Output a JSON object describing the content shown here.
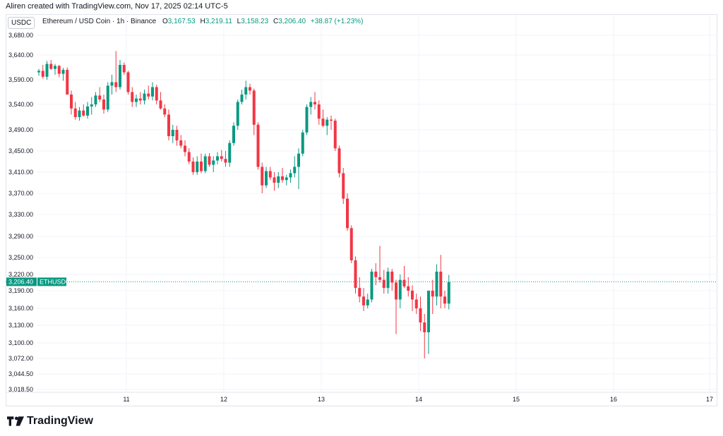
{
  "header": {
    "credit": "Aliren created with TradingView.com, Nov 17, 2025 02:14 UTC-5"
  },
  "legend": {
    "symbol": "Ethereum / USD Coin · 1h · Binance",
    "open_label": "O",
    "open": "3,167.53",
    "high_label": "H",
    "high": "3,219.11",
    "low_label": "L",
    "low": "3,158.23",
    "close_label": "C",
    "close": "3,206.40",
    "change": "+38.87 (+1.23%)"
  },
  "currency_badge": "USDC",
  "price_marker": {
    "value": "3,206.40",
    "ticker": "ETHUSDC"
  },
  "footer": {
    "brand": "TradingView"
  },
  "colors": {
    "up": "#089981",
    "down": "#f23645",
    "grid": "#f0f3fa",
    "axis_text": "#131722"
  },
  "chart_data": {
    "type": "candlestick",
    "title": "Ethereum / USD Coin · 1h · Binance",
    "y_axis": {
      "ticks": [
        "3,680.00",
        "3,640.00",
        "3,590.00",
        "3,540.00",
        "3,490.00",
        "3,450.00",
        "3,410.00",
        "3,370.00",
        "3,330.00",
        "3,290.00",
        "3,250.00",
        "3,220.00",
        "3,190.00",
        "3,160.00",
        "3,130.00",
        "3,100.00",
        "3,072.00",
        "3,044.50",
        "3,018.50"
      ],
      "range": [
        3000,
        3700
      ]
    },
    "x_axis": {
      "ticks": [
        "11",
        "12",
        "13",
        "14",
        "15",
        "16",
        "17"
      ],
      "unit": "day"
    },
    "last_price": 3206.4,
    "candles": [
      [
        3605,
        3612,
        3598,
        3608
      ],
      [
        3608,
        3620,
        3592,
        3596
      ],
      [
        3596,
        3628,
        3590,
        3622
      ],
      [
        3622,
        3630,
        3610,
        3612
      ],
      [
        3612,
        3622,
        3600,
        3618
      ],
      [
        3618,
        3620,
        3595,
        3602
      ],
      [
        3602,
        3614,
        3588,
        3610
      ],
      [
        3610,
        3615,
        3560,
        3560
      ],
      [
        3560,
        3568,
        3520,
        3532
      ],
      [
        3532,
        3545,
        3510,
        3515
      ],
      [
        3515,
        3535,
        3508,
        3528
      ],
      [
        3528,
        3540,
        3516,
        3518
      ],
      [
        3518,
        3545,
        3512,
        3536
      ],
      [
        3536,
        3555,
        3520,
        3540
      ],
      [
        3540,
        3565,
        3535,
        3558
      ],
      [
        3558,
        3575,
        3545,
        3550
      ],
      [
        3550,
        3560,
        3522,
        3530
      ],
      [
        3530,
        3585,
        3525,
        3578
      ],
      [
        3578,
        3600,
        3560,
        3585
      ],
      [
        3585,
        3648,
        3565,
        3575
      ],
      [
        3575,
        3630,
        3570,
        3620
      ],
      [
        3620,
        3625,
        3600,
        3605
      ],
      [
        3605,
        3608,
        3560,
        3565
      ],
      [
        3565,
        3575,
        3535,
        3545
      ],
      [
        3545,
        3560,
        3535,
        3552
      ],
      [
        3552,
        3565,
        3540,
        3548
      ],
      [
        3548,
        3570,
        3540,
        3562
      ],
      [
        3562,
        3578,
        3550,
        3556
      ],
      [
        3556,
        3585,
        3548,
        3575
      ],
      [
        3575,
        3580,
        3540,
        3548
      ],
      [
        3548,
        3565,
        3530,
        3532
      ],
      [
        3532,
        3540,
        3515,
        3520
      ],
      [
        3520,
        3530,
        3470,
        3478
      ],
      [
        3478,
        3500,
        3465,
        3490
      ],
      [
        3490,
        3498,
        3460,
        3470
      ],
      [
        3470,
        3480,
        3455,
        3460
      ],
      [
        3460,
        3470,
        3440,
        3448
      ],
      [
        3448,
        3455,
        3425,
        3430
      ],
      [
        3430,
        3438,
        3405,
        3410
      ],
      [
        3410,
        3440,
        3405,
        3430
      ],
      [
        3430,
        3445,
        3408,
        3412
      ],
      [
        3412,
        3445,
        3408,
        3440
      ],
      [
        3440,
        3446,
        3420,
        3424
      ],
      [
        3424,
        3440,
        3410,
        3432
      ],
      [
        3432,
        3448,
        3425,
        3440
      ],
      [
        3440,
        3452,
        3430,
        3435
      ],
      [
        3435,
        3450,
        3420,
        3428
      ],
      [
        3428,
        3470,
        3420,
        3465
      ],
      [
        3465,
        3505,
        3460,
        3498
      ],
      [
        3498,
        3550,
        3490,
        3545
      ],
      [
        3545,
        3570,
        3540,
        3560
      ],
      [
        3560,
        3588,
        3550,
        3575
      ],
      [
        3575,
        3582,
        3560,
        3568
      ],
      [
        3568,
        3572,
        3480,
        3500
      ],
      [
        3500,
        3505,
        3415,
        3420
      ],
      [
        3420,
        3428,
        3370,
        3385
      ],
      [
        3385,
        3420,
        3380,
        3412
      ],
      [
        3412,
        3420,
        3395,
        3400
      ],
      [
        3400,
        3410,
        3375,
        3390
      ],
      [
        3390,
        3410,
        3380,
        3402
      ],
      [
        3402,
        3418,
        3390,
        3395
      ],
      [
        3395,
        3405,
        3385,
        3400
      ],
      [
        3400,
        3415,
        3390,
        3408
      ],
      [
        3408,
        3440,
        3400,
        3420
      ],
      [
        3420,
        3455,
        3378,
        3445
      ],
      [
        3445,
        3490,
        3440,
        3485
      ],
      [
        3485,
        3540,
        3480,
        3535
      ],
      [
        3535,
        3555,
        3520,
        3545
      ],
      [
        3545,
        3565,
        3530,
        3540
      ],
      [
        3540,
        3548,
        3500,
        3512
      ],
      [
        3512,
        3530,
        3495,
        3498
      ],
      [
        3498,
        3515,
        3480,
        3510
      ],
      [
        3510,
        3518,
        3490,
        3508
      ],
      [
        3508,
        3512,
        3450,
        3455
      ],
      [
        3455,
        3460,
        3400,
        3408
      ],
      [
        3408,
        3418,
        3350,
        3360
      ],
      [
        3360,
        3370,
        3300,
        3305
      ],
      [
        3305,
        3310,
        3240,
        3245
      ],
      [
        3245,
        3252,
        3185,
        3195
      ],
      [
        3195,
        3215,
        3170,
        3180
      ],
      [
        3180,
        3195,
        3155,
        3165
      ],
      [
        3165,
        3185,
        3160,
        3175
      ],
      [
        3175,
        3230,
        3170,
        3225
      ],
      [
        3225,
        3240,
        3200,
        3215
      ],
      [
        3215,
        3272,
        3205,
        3210
      ],
      [
        3210,
        3228,
        3185,
        3195
      ],
      [
        3195,
        3232,
        3185,
        3225
      ],
      [
        3225,
        3230,
        3190,
        3205
      ],
      [
        3205,
        3210,
        3115,
        3175
      ],
      [
        3175,
        3220,
        3160,
        3210
      ],
      [
        3210,
        3235,
        3195,
        3198
      ],
      [
        3198,
        3215,
        3180,
        3190
      ],
      [
        3190,
        3200,
        3155,
        3175
      ],
      [
        3175,
        3185,
        3150,
        3160
      ],
      [
        3160,
        3180,
        3120,
        3135
      ],
      [
        3135,
        3150,
        3072,
        3118
      ],
      [
        3118,
        3185,
        3080,
        3190
      ],
      [
        3190,
        3210,
        3150,
        3180
      ],
      [
        3180,
        3238,
        3165,
        3225
      ],
      [
        3225,
        3255,
        3160,
        3180
      ],
      [
        3180,
        3190,
        3160,
        3168
      ],
      [
        3168,
        3219,
        3158,
        3206
      ]
    ]
  }
}
